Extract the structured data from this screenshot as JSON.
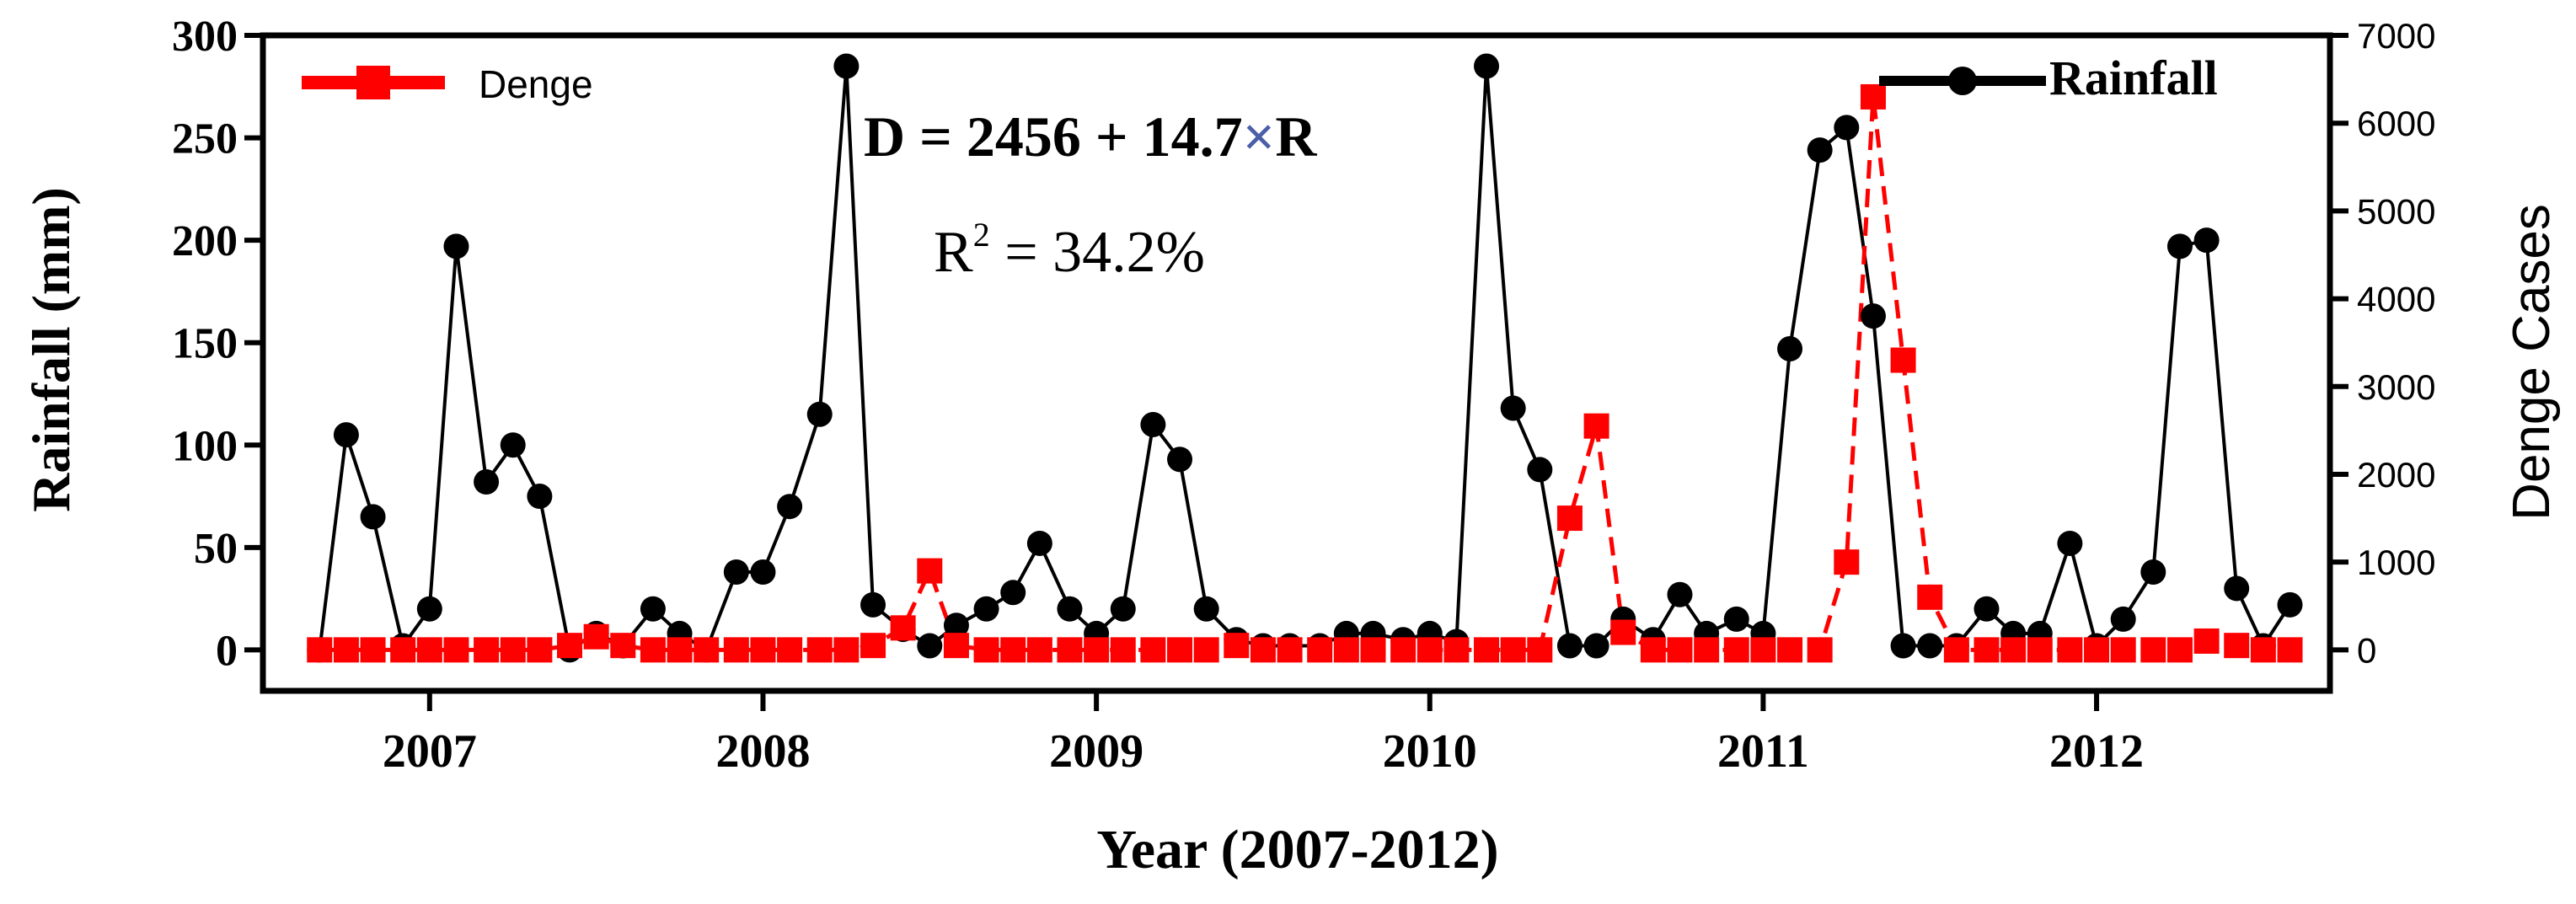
{
  "chart_data": {
    "type": "line",
    "xlabel": "Year (2007-2012)",
    "ylabel_left": "Rainfall (mm)",
    "ylabel_right": "Denge Cases",
    "x_ticks": [
      "2007",
      "2008",
      "2009",
      "2010",
      "2011",
      "2012"
    ],
    "x_range": [
      2006.5,
      2012.7
    ],
    "ylim_left": [
      -20,
      300
    ],
    "yticks_left": [
      "0",
      "50",
      "100",
      "150",
      "200",
      "250",
      "300"
    ],
    "ylim_right": [
      -466.7,
      7000
    ],
    "yticks_right": [
      "0",
      "1000",
      "2000",
      "3000",
      "4000",
      "5000",
      "6000",
      "7000"
    ],
    "grid": false,
    "legend": [
      {
        "label": "Denge",
        "position": "top-left"
      },
      {
        "label": "Rainfall",
        "position": "top-right"
      }
    ],
    "annotations": {
      "equation_prefix": "D = 2456 + 14.7",
      "equation_times": "×",
      "equation_suffix": "R",
      "r2_base": "R",
      "r2_exp": "2",
      "r2_value": " = 34.2%"
    },
    "colors": {
      "rainfall": "#000000",
      "denge": "#ff0000",
      "times_sign": "#4a5fa8"
    },
    "series": [
      {
        "name": "Rainfall",
        "axis": "left",
        "x": [
          2006.67,
          2006.75,
          2006.83,
          2006.92,
          2007.0,
          2007.08,
          2007.17,
          2007.25,
          2007.33,
          2007.42,
          2007.5,
          2007.58,
          2007.67,
          2007.75,
          2007.83,
          2007.92,
          2008.0,
          2008.08,
          2008.17,
          2008.25,
          2008.33,
          2008.42,
          2008.5,
          2008.58,
          2008.67,
          2008.75,
          2008.83,
          2008.92,
          2009.0,
          2009.08,
          2009.17,
          2009.25,
          2009.33,
          2009.42,
          2009.5,
          2009.58,
          2009.67,
          2009.75,
          2009.83,
          2009.92,
          2010.0,
          2010.08,
          2010.17,
          2010.25,
          2010.33,
          2010.42,
          2010.5,
          2010.58,
          2010.67,
          2010.75,
          2010.83,
          2010.92,
          2011.0,
          2011.08,
          2011.17,
          2011.25,
          2011.33,
          2011.42,
          2011.5,
          2011.58,
          2011.67,
          2011.75,
          2011.83,
          2011.92,
          2012.0,
          2012.08,
          2012.17,
          2012.25,
          2012.33,
          2012.42,
          2012.5,
          2012.58
        ],
        "values": [
          0,
          105,
          65,
          2,
          20,
          197,
          82,
          100,
          75,
          0,
          8,
          2,
          20,
          8,
          0,
          38,
          38,
          70,
          115,
          285,
          22,
          10,
          2,
          12,
          20,
          28,
          52,
          20,
          8,
          20,
          110,
          93,
          20,
          5,
          2,
          2,
          2,
          8,
          8,
          5,
          8,
          4,
          285,
          118,
          88,
          2,
          2,
          15,
          5,
          27,
          8,
          15,
          8,
          147,
          244,
          255,
          163,
          2,
          2,
          2,
          20,
          8,
          8,
          52,
          2,
          15,
          38,
          197,
          200,
          30,
          2,
          22
        ]
      },
      {
        "name": "Denge",
        "axis": "right",
        "x": [
          2006.67,
          2006.75,
          2006.83,
          2006.92,
          2007.0,
          2007.08,
          2007.17,
          2007.25,
          2007.33,
          2007.42,
          2007.5,
          2007.58,
          2007.67,
          2007.75,
          2007.83,
          2007.92,
          2008.0,
          2008.08,
          2008.17,
          2008.25,
          2008.33,
          2008.42,
          2008.5,
          2008.58,
          2008.67,
          2008.75,
          2008.83,
          2008.92,
          2009.0,
          2009.08,
          2009.17,
          2009.25,
          2009.33,
          2009.42,
          2009.5,
          2009.58,
          2009.67,
          2009.75,
          2009.83,
          2009.92,
          2010.0,
          2010.08,
          2010.17,
          2010.25,
          2010.33,
          2010.42,
          2010.5,
          2010.58,
          2010.67,
          2010.75,
          2010.83,
          2010.92,
          2011.0,
          2011.08,
          2011.17,
          2011.25,
          2011.33,
          2011.42,
          2011.5,
          2011.58,
          2011.67,
          2011.75,
          2011.83,
          2011.92,
          2012.0,
          2012.08,
          2012.17,
          2012.25,
          2012.33,
          2012.42,
          2012.5,
          2012.58
        ],
        "values": [
          0,
          0,
          0,
          0,
          0,
          0,
          0,
          0,
          0,
          50,
          150,
          50,
          0,
          0,
          0,
          0,
          0,
          0,
          0,
          0,
          50,
          250,
          900,
          50,
          0,
          0,
          0,
          0,
          0,
          0,
          0,
          0,
          0,
          50,
          0,
          0,
          0,
          0,
          0,
          0,
          0,
          0,
          0,
          0,
          0,
          1500,
          2550,
          200,
          0,
          0,
          0,
          0,
          0,
          0,
          0,
          1000,
          6300,
          3300,
          600,
          0,
          0,
          0,
          0,
          0,
          0,
          0,
          0,
          0,
          100,
          50,
          0,
          0
        ]
      }
    ]
  }
}
